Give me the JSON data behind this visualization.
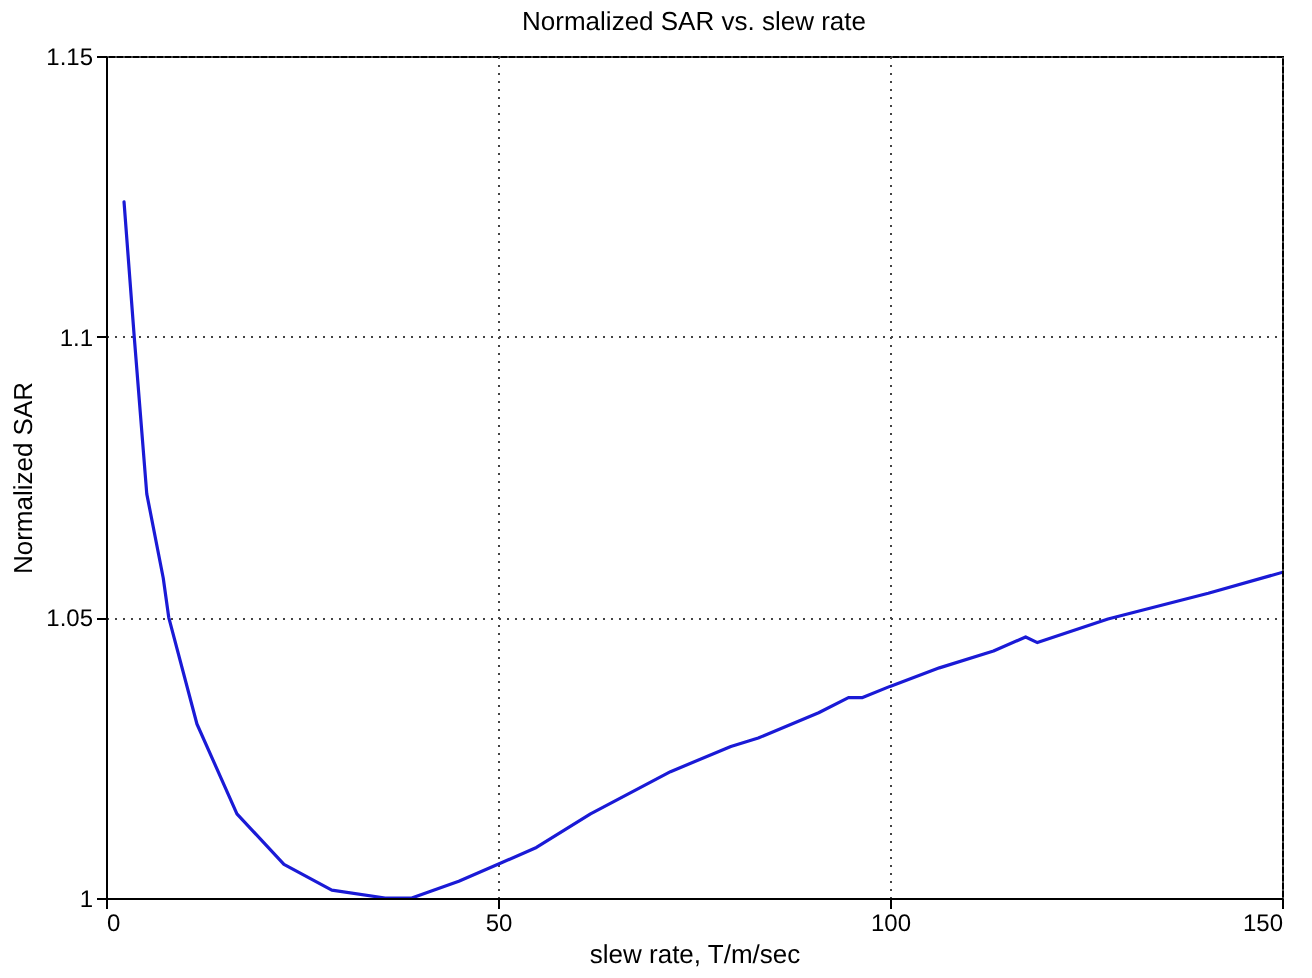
{
  "chart_data": {
    "type": "line",
    "title": "Normalized SAR vs. slew rate",
    "xlabel": "slew rate, T/m/sec",
    "ylabel": "Normalized SAR",
    "xlim": [
      0,
      150
    ],
    "xticks": [
      0,
      50,
      100,
      150
    ],
    "ylim": [
      1,
      1.15
    ],
    "yticks": [
      1,
      1.05,
      1.1,
      1.15
    ],
    "grid": true,
    "marker": "none",
    "line_style": "solid",
    "series": [
      {
        "color": "#1a1ad6",
        "x": [
          2.3,
          3.6,
          5.2,
          7.3,
          8.0,
          11.6,
          16.7,
          22.7,
          28.8,
          35.6,
          39,
          45,
          50,
          54.9,
          61.8,
          72,
          79.7,
          83.2,
          90.9,
          94.7,
          96.5,
          100,
          106.3,
          113.2,
          117.3,
          118.8,
          127.8,
          140.6,
          150
        ],
        "values": [
          1.124,
          1.1,
          1.072,
          1.057,
          1.05,
          1.031,
          1.015,
          1.006,
          1.0014,
          1.0,
          1.0,
          1.003,
          1.006,
          1.009,
          1.015,
          1.0225,
          1.027,
          1.0285,
          1.033,
          1.0357,
          1.0357,
          1.0377,
          1.041,
          1.044,
          1.0465,
          1.0455,
          1.0497,
          1.0543,
          1.058
        ]
      }
    ]
  }
}
